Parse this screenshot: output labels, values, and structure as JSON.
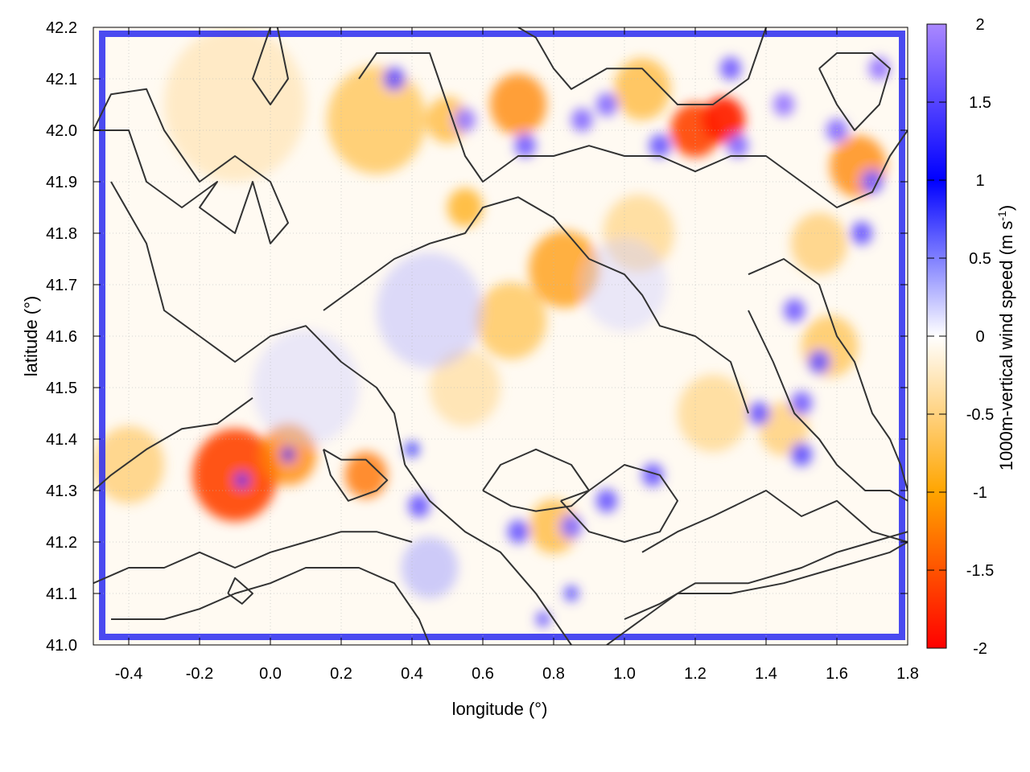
{
  "chart_data": {
    "type": "heatmap",
    "title": "",
    "xlabel": "longitude (°)",
    "ylabel": "latitude (°)",
    "xlim": [
      -0.5,
      1.8
    ],
    "ylim": [
      41.0,
      42.2
    ],
    "xticks": [
      "-0.4",
      "-0.2",
      "0.0",
      "0.2",
      "0.4",
      "0.6",
      "0.8",
      "1.0",
      "1.2",
      "1.4",
      "1.6",
      "1.8"
    ],
    "xtick_values": [
      -0.4,
      -0.2,
      0.0,
      0.2,
      0.4,
      0.6,
      0.8,
      1.0,
      1.2,
      1.4,
      1.6,
      1.8
    ],
    "yticks": [
      "41.0",
      "41.1",
      "41.2",
      "41.3",
      "41.4",
      "41.5",
      "41.6",
      "41.7",
      "41.8",
      "41.9",
      "42.0",
      "42.1",
      "42.2"
    ],
    "ytick_values": [
      41.0,
      41.1,
      41.2,
      41.3,
      41.4,
      41.5,
      41.6,
      41.7,
      41.8,
      41.9,
      42.0,
      42.1,
      42.2
    ],
    "grid": true,
    "colorbar": {
      "label_main": "1000m-vertical wind speed (m s",
      "label_sup": "-1",
      "label_end": ")",
      "range": [
        -2,
        2
      ],
      "ticks": [
        "2",
        "1.5",
        "1",
        "0.5",
        "0",
        "-0.5",
        "-1",
        "-1.5",
        "-2"
      ],
      "tick_values": [
        2,
        1.5,
        1,
        0.5,
        0,
        -0.5,
        -1,
        -1.5,
        -2
      ],
      "stops": [
        {
          "v": -2,
          "color": "#ff0000"
        },
        {
          "v": -1,
          "color": "#ffa500"
        },
        {
          "v": 0,
          "color": "#ffffff"
        },
        {
          "v": 1,
          "color": "#0000ff"
        },
        {
          "v": 2,
          "color": "#aa88ff"
        }
      ]
    },
    "features": [
      {
        "lon": -0.1,
        "lat": 41.33,
        "v": -1.6,
        "r": 0.12
      },
      {
        "lon": 0.05,
        "lat": 41.37,
        "v": -1.2,
        "r": 0.08
      },
      {
        "lon": 0.27,
        "lat": 41.33,
        "v": -1.3,
        "r": 0.06
      },
      {
        "lon": 0.83,
        "lat": 41.73,
        "v": -1.1,
        "r": 0.1
      },
      {
        "lon": 0.68,
        "lat": 41.63,
        "v": -0.8,
        "r": 0.1
      },
      {
        "lon": 1.04,
        "lat": 41.8,
        "v": -0.6,
        "r": 0.1
      },
      {
        "lon": 0.55,
        "lat": 41.85,
        "v": -1.0,
        "r": 0.05
      },
      {
        "lon": 0.3,
        "lat": 42.02,
        "v": -0.8,
        "r": 0.14
      },
      {
        "lon": 0.5,
        "lat": 42.02,
        "v": -0.9,
        "r": 0.06
      },
      {
        "lon": 0.7,
        "lat": 42.05,
        "v": -1.2,
        "r": 0.08
      },
      {
        "lon": 1.2,
        "lat": 42.0,
        "v": -1.6,
        "r": 0.07
      },
      {
        "lon": 1.28,
        "lat": 42.02,
        "v": -1.8,
        "r": 0.06
      },
      {
        "lon": 1.05,
        "lat": 42.08,
        "v": -0.9,
        "r": 0.08
      },
      {
        "lon": 1.66,
        "lat": 41.93,
        "v": -1.2,
        "r": 0.08
      },
      {
        "lon": 1.55,
        "lat": 41.78,
        "v": -0.7,
        "r": 0.08
      },
      {
        "lon": 1.58,
        "lat": 41.58,
        "v": -0.8,
        "r": 0.08
      },
      {
        "lon": 1.45,
        "lat": 41.42,
        "v": -0.7,
        "r": 0.07
      },
      {
        "lon": 0.55,
        "lat": 41.5,
        "v": -0.5,
        "r": 0.1
      },
      {
        "lon": 0.8,
        "lat": 41.23,
        "v": -0.9,
        "r": 0.07
      },
      {
        "lon": -0.4,
        "lat": 41.35,
        "v": -0.7,
        "r": 0.1
      },
      {
        "lon": -0.1,
        "lat": 42.05,
        "v": -0.4,
        "r": 0.2
      },
      {
        "lon": 1.25,
        "lat": 41.45,
        "v": -0.6,
        "r": 0.1
      },
      {
        "lon": 0.45,
        "lat": 41.65,
        "v": 0.3,
        "r": 0.15
      },
      {
        "lon": 0.45,
        "lat": 41.15,
        "v": 0.4,
        "r": 0.08
      },
      {
        "lon": 0.1,
        "lat": 41.5,
        "v": 0.2,
        "r": 0.15
      },
      {
        "lon": 1.0,
        "lat": 41.7,
        "v": 0.2,
        "r": 0.12
      },
      {
        "lon": 0.55,
        "lat": 42.02,
        "v": 1.9,
        "r": 0.03
      },
      {
        "lon": 0.72,
        "lat": 41.97,
        "v": 1.7,
        "r": 0.03
      },
      {
        "lon": 0.88,
        "lat": 42.02,
        "v": 1.8,
        "r": 0.03
      },
      {
        "lon": 0.95,
        "lat": 42.05,
        "v": 1.8,
        "r": 0.03
      },
      {
        "lon": 1.1,
        "lat": 41.97,
        "v": 1.6,
        "r": 0.03
      },
      {
        "lon": 1.32,
        "lat": 41.97,
        "v": 1.8,
        "r": 0.03
      },
      {
        "lon": 1.45,
        "lat": 42.05,
        "v": 1.9,
        "r": 0.03
      },
      {
        "lon": 1.6,
        "lat": 42.0,
        "v": 1.8,
        "r": 0.03
      },
      {
        "lon": 1.7,
        "lat": 41.9,
        "v": 1.7,
        "r": 0.03
      },
      {
        "lon": 1.67,
        "lat": 41.8,
        "v": 1.6,
        "r": 0.03
      },
      {
        "lon": 1.72,
        "lat": 42.12,
        "v": 1.9,
        "r": 0.03
      },
      {
        "lon": 1.3,
        "lat": 42.12,
        "v": 1.7,
        "r": 0.03
      },
      {
        "lon": 0.35,
        "lat": 42.1,
        "v": 1.6,
        "r": 0.03
      },
      {
        "lon": 1.55,
        "lat": 41.55,
        "v": 1.6,
        "r": 0.03
      },
      {
        "lon": 1.5,
        "lat": 41.47,
        "v": 1.7,
        "r": 0.03
      },
      {
        "lon": 1.48,
        "lat": 41.65,
        "v": 1.7,
        "r": 0.03
      },
      {
        "lon": 1.38,
        "lat": 41.45,
        "v": 1.6,
        "r": 0.03
      },
      {
        "lon": 1.5,
        "lat": 41.37,
        "v": 1.5,
        "r": 0.03
      },
      {
        "lon": 1.08,
        "lat": 41.33,
        "v": 1.6,
        "r": 0.03
      },
      {
        "lon": 0.95,
        "lat": 41.28,
        "v": 1.6,
        "r": 0.03
      },
      {
        "lon": 0.85,
        "lat": 41.23,
        "v": 1.8,
        "r": 0.03
      },
      {
        "lon": 0.7,
        "lat": 41.22,
        "v": 1.6,
        "r": 0.03
      },
      {
        "lon": 0.42,
        "lat": 41.27,
        "v": 1.6,
        "r": 0.03
      },
      {
        "lon": 0.05,
        "lat": 41.37,
        "v": 1.2,
        "r": 0.02
      },
      {
        "lon": -0.08,
        "lat": 41.32,
        "v": 1.4,
        "r": 0.02
      },
      {
        "lon": 0.77,
        "lat": 41.05,
        "v": 1.6,
        "r": 0.02
      },
      {
        "lon": 0.85,
        "lat": 41.1,
        "v": 1.4,
        "r": 0.02
      },
      {
        "lon": 0.4,
        "lat": 41.38,
        "v": 1.0,
        "r": 0.02
      }
    ],
    "contours": [
      [
        [
          -0.5,
          42.0
        ],
        [
          -0.45,
          42.07
        ],
        [
          -0.35,
          42.08
        ],
        [
          -0.3,
          42.0
        ],
        [
          -0.25,
          41.95
        ],
        [
          -0.2,
          41.9
        ],
        [
          -0.1,
          41.95
        ],
        [
          0.0,
          41.9
        ],
        [
          0.05,
          41.82
        ],
        [
          0.0,
          41.78
        ],
        [
          -0.05,
          41.9
        ],
        [
          -0.1,
          41.8
        ],
        [
          -0.2,
          41.85
        ],
        [
          -0.15,
          41.9
        ],
        [
          -0.25,
          41.85
        ],
        [
          -0.35,
          41.9
        ],
        [
          -0.4,
          42.0
        ],
        [
          -0.5,
          42.0
        ]
      ],
      [
        [
          -0.45,
          41.9
        ],
        [
          -0.35,
          41.78
        ],
        [
          -0.3,
          41.65
        ],
        [
          -0.2,
          41.6
        ],
        [
          -0.1,
          41.55
        ],
        [
          0.0,
          41.6
        ],
        [
          0.1,
          41.62
        ],
        [
          0.2,
          41.55
        ],
        [
          0.3,
          41.5
        ],
        [
          0.35,
          41.45
        ],
        [
          0.38,
          41.35
        ]
      ],
      [
        [
          0.15,
          41.65
        ],
        [
          0.25,
          41.7
        ],
        [
          0.35,
          41.75
        ],
        [
          0.45,
          41.78
        ],
        [
          0.55,
          41.8
        ],
        [
          0.6,
          41.85
        ],
        [
          0.7,
          41.87
        ],
        [
          0.8,
          41.83
        ],
        [
          0.9,
          41.75
        ],
        [
          1.0,
          41.72
        ],
        [
          1.05,
          41.68
        ],
        [
          1.1,
          41.62
        ],
        [
          1.2,
          41.6
        ],
        [
          1.3,
          41.55
        ],
        [
          1.35,
          41.45
        ]
      ],
      [
        [
          0.38,
          41.35
        ],
        [
          0.45,
          41.28
        ],
        [
          0.55,
          41.22
        ],
        [
          0.65,
          41.18
        ],
        [
          0.75,
          41.1
        ],
        [
          0.8,
          41.05
        ],
        [
          0.85,
          41.0
        ]
      ],
      [
        [
          -0.05,
          41.48
        ],
        [
          -0.15,
          41.43
        ],
        [
          -0.25,
          41.42
        ],
        [
          -0.35,
          41.38
        ],
        [
          -0.45,
          41.33
        ],
        [
          -0.5,
          41.3
        ]
      ],
      [
        [
          0.15,
          41.38
        ],
        [
          0.2,
          41.36
        ],
        [
          0.27,
          41.36
        ],
        [
          0.33,
          41.32
        ],
        [
          0.3,
          41.3
        ],
        [
          0.22,
          41.28
        ],
        [
          0.17,
          41.33
        ],
        [
          0.15,
          41.38
        ]
      ],
      [
        [
          0.82,
          41.28
        ],
        [
          0.9,
          41.3
        ],
        [
          1.0,
          41.35
        ],
        [
          1.1,
          41.33
        ],
        [
          1.15,
          41.28
        ],
        [
          1.1,
          41.22
        ],
        [
          1.0,
          41.2
        ],
        [
          0.9,
          41.22
        ],
        [
          0.82,
          41.28
        ]
      ],
      [
        [
          1.05,
          41.18
        ],
        [
          1.15,
          41.22
        ],
        [
          1.25,
          41.25
        ],
        [
          1.4,
          41.3
        ],
        [
          1.5,
          41.25
        ],
        [
          1.6,
          41.28
        ],
        [
          1.7,
          41.22
        ],
        [
          1.8,
          41.2
        ]
      ],
      [
        [
          1.0,
          41.05
        ],
        [
          1.1,
          41.08
        ],
        [
          1.2,
          41.12
        ],
        [
          1.35,
          41.12
        ],
        [
          1.5,
          41.15
        ],
        [
          1.6,
          41.18
        ],
        [
          1.7,
          41.2
        ],
        [
          1.8,
          41.22
        ]
      ],
      [
        [
          0.95,
          41.0
        ],
        [
          1.05,
          41.05
        ],
        [
          1.15,
          41.1
        ],
        [
          1.3,
          41.1
        ],
        [
          1.45,
          41.12
        ],
        [
          1.6,
          41.15
        ],
        [
          1.75,
          41.18
        ],
        [
          1.8,
          41.2
        ]
      ],
      [
        [
          -0.5,
          41.12
        ],
        [
          -0.4,
          41.15
        ],
        [
          -0.3,
          41.15
        ],
        [
          -0.2,
          41.18
        ],
        [
          -0.1,
          41.15
        ],
        [
          0.0,
          41.18
        ],
        [
          0.1,
          41.2
        ],
        [
          0.2,
          41.22
        ],
        [
          0.3,
          41.22
        ],
        [
          0.4,
          41.2
        ]
      ],
      [
        [
          -0.45,
          41.05
        ],
        [
          -0.3,
          41.05
        ],
        [
          -0.2,
          41.07
        ],
        [
          -0.1,
          41.1
        ],
        [
          0.0,
          41.12
        ],
        [
          0.1,
          41.15
        ],
        [
          0.25,
          41.15
        ],
        [
          0.35,
          41.12
        ],
        [
          0.42,
          41.05
        ],
        [
          0.45,
          41.0
        ]
      ],
      [
        [
          1.4,
          42.2
        ],
        [
          1.35,
          42.1
        ],
        [
          1.25,
          42.05
        ],
        [
          1.15,
          42.05
        ],
        [
          1.05,
          42.12
        ],
        [
          0.95,
          42.12
        ],
        [
          0.85,
          42.08
        ],
        [
          0.8,
          42.12
        ],
        [
          0.75,
          42.18
        ],
        [
          0.7,
          42.2
        ]
      ],
      [
        [
          0.25,
          42.1
        ],
        [
          0.3,
          42.15
        ],
        [
          0.45,
          42.15
        ],
        [
          0.5,
          42.05
        ],
        [
          0.55,
          41.95
        ],
        [
          0.6,
          41.9
        ],
        [
          0.7,
          41.95
        ],
        [
          0.8,
          41.95
        ],
        [
          0.9,
          41.97
        ],
        [
          1.0,
          41.95
        ],
        [
          1.1,
          41.95
        ],
        [
          1.2,
          41.92
        ],
        [
          1.3,
          41.95
        ],
        [
          1.4,
          41.95
        ],
        [
          1.5,
          41.9
        ],
        [
          1.6,
          41.85
        ],
        [
          1.7,
          41.88
        ],
        [
          1.75,
          41.95
        ],
        [
          1.8,
          42.0
        ]
      ],
      [
        [
          1.35,
          41.72
        ],
        [
          1.45,
          41.75
        ],
        [
          1.55,
          41.7
        ],
        [
          1.6,
          41.6
        ],
        [
          1.65,
          41.55
        ],
        [
          1.7,
          41.45
        ],
        [
          1.75,
          41.4
        ],
        [
          1.78,
          41.35
        ],
        [
          1.8,
          41.3
        ]
      ],
      [
        [
          1.35,
          41.65
        ],
        [
          1.42,
          41.55
        ],
        [
          1.48,
          41.45
        ],
        [
          1.55,
          41.4
        ],
        [
          1.6,
          41.35
        ],
        [
          1.68,
          41.3
        ],
        [
          1.75,
          41.3
        ],
        [
          1.8,
          41.28
        ]
      ],
      [
        [
          0.02,
          42.2
        ],
        [
          0.05,
          42.1
        ],
        [
          0.0,
          42.05
        ],
        [
          -0.05,
          42.1
        ],
        [
          0.0,
          42.2
        ]
      ],
      [
        [
          -0.12,
          41.1
        ],
        [
          -0.08,
          41.08
        ],
        [
          -0.05,
          41.1
        ],
        [
          -0.1,
          41.13
        ],
        [
          -0.12,
          41.1
        ]
      ],
      [
        [
          1.55,
          42.12
        ],
        [
          1.6,
          42.05
        ],
        [
          1.65,
          42.0
        ],
        [
          1.72,
          42.05
        ],
        [
          1.75,
          42.12
        ],
        [
          1.7,
          42.15
        ],
        [
          1.6,
          42.15
        ],
        [
          1.55,
          42.12
        ]
      ],
      [
        [
          0.6,
          41.3
        ],
        [
          0.65,
          41.35
        ],
        [
          0.75,
          41.38
        ],
        [
          0.85,
          41.35
        ],
        [
          0.9,
          41.3
        ],
        [
          0.85,
          41.27
        ],
        [
          0.75,
          41.26
        ],
        [
          0.68,
          41.27
        ],
        [
          0.6,
          41.3
        ]
      ]
    ]
  }
}
